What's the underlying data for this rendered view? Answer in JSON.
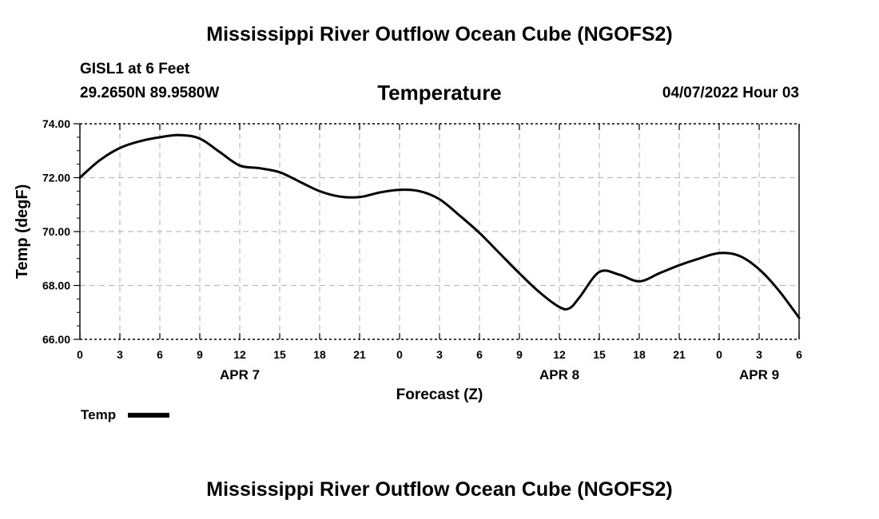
{
  "page": {
    "title_top": "Mississippi River Outflow Ocean Cube (NGOFS2)",
    "title_bottom": "Mississippi River Outflow Ocean Cube (NGOFS2)",
    "station": "GISL1 at 6 Feet",
    "coords": "29.2650N  89.9580W",
    "datetime": "04/07/2022 Hour 03"
  },
  "chart_data": {
    "type": "line",
    "title": "Temperature",
    "xlabel": "Forecast (Z)",
    "ylabel": "Temp (degF)",
    "xlim": [
      0,
      54
    ],
    "ylim": [
      66,
      74
    ],
    "grid": true,
    "legend_position": "bottom-left",
    "x_ticks": [
      0,
      3,
      6,
      9,
      12,
      15,
      18,
      21,
      24,
      27,
      30,
      33,
      36,
      39,
      42,
      45,
      48,
      51,
      54
    ],
    "x_tick_labels": [
      "0",
      "3",
      "6",
      "9",
      "12",
      "15",
      "18",
      "21",
      "0",
      "3",
      "6",
      "9",
      "12",
      "15",
      "18",
      "21",
      "0",
      "3",
      "6"
    ],
    "y_ticks": [
      66,
      68,
      70,
      72,
      74
    ],
    "y_tick_labels": [
      "66.00",
      "68.00",
      "70.00",
      "72.00",
      "74.00"
    ],
    "date_labels": [
      {
        "x": 12,
        "label": "APR 7"
      },
      {
        "x": 36,
        "label": "APR 8"
      },
      {
        "x": 51,
        "label": "APR 9"
      }
    ],
    "series": [
      {
        "name": "Temp",
        "color": "#000000",
        "x": [
          0,
          1.5,
          3,
          4.5,
          6,
          7.5,
          9,
          10.5,
          12,
          13.5,
          15,
          16.5,
          18,
          19.5,
          21,
          22.5,
          24,
          25.5,
          27,
          28.5,
          30,
          31.5,
          33,
          34.5,
          36,
          36.75,
          37.5,
          39,
          40.5,
          42,
          43.5,
          45,
          46.5,
          48,
          49.5,
          51,
          52.5,
          54
        ],
        "values": [
          72.0,
          72.65,
          73.1,
          73.35,
          73.5,
          73.58,
          73.45,
          72.95,
          72.45,
          72.35,
          72.2,
          71.85,
          71.5,
          71.3,
          71.28,
          71.45,
          71.55,
          71.5,
          71.2,
          70.6,
          69.95,
          69.2,
          68.45,
          67.75,
          67.2,
          67.15,
          67.55,
          68.5,
          68.4,
          68.15,
          68.45,
          68.75,
          69.0,
          69.2,
          69.1,
          68.6,
          67.8,
          66.8
        ]
      }
    ]
  }
}
